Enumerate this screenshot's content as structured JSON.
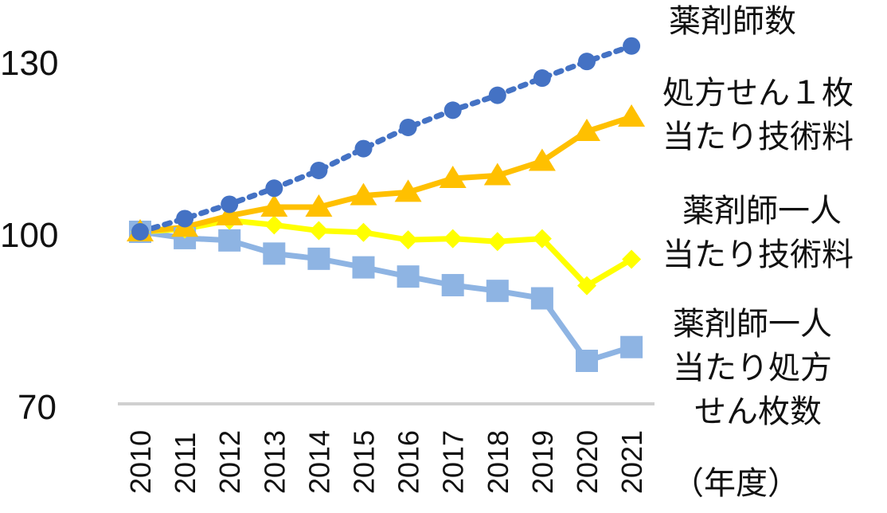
{
  "chart_data": {
    "type": "line",
    "x_unit_label": "（年度）",
    "categories": [
      "2010",
      "2011",
      "2012",
      "2013",
      "2014",
      "2015",
      "2016",
      "2017",
      "2018",
      "2019",
      "2020",
      "2021"
    ],
    "ylim": [
      70,
      130
    ],
    "yticks": [
      "130",
      "100",
      "70"
    ],
    "series": [
      {
        "name": "薬剤師数",
        "label_lines": [
          "薬剤師数"
        ],
        "marker": "circle",
        "line_style": "dotted",
        "color": "#4472C4",
        "values": [
          100,
          102.3,
          104.8,
          107.6,
          110.7,
          114.5,
          118.2,
          121.2,
          123.8,
          126.8,
          129.7,
          132.4
        ]
      },
      {
        "name": "処方せん１枚当たり技術料",
        "label_lines": [
          "処方せん１枚",
          "当たり技術料"
        ],
        "marker": "triangle",
        "line_style": "solid",
        "color": "#FFC000",
        "values": [
          100,
          100.8,
          102.8,
          104.3,
          104.3,
          106.3,
          106.9,
          109.3,
          109.8,
          112.3,
          117.5,
          120
        ]
      },
      {
        "name": "薬剤師一人当たり技術料",
        "label_lines": [
          "薬剤師一人",
          "当たり技術料"
        ],
        "marker": "diamond",
        "line_style": "solid",
        "color": "#FFFF00",
        "values": [
          100,
          100.5,
          102,
          101.2,
          100.2,
          99.9,
          98.6,
          98.8,
          98.3,
          98.8,
          90.6,
          95.2
        ]
      },
      {
        "name": "薬剤師一人当たり処方せん枚数",
        "label_lines": [
          "薬剤師一人",
          "当たり処方",
          "せん枚数"
        ],
        "marker": "square",
        "line_style": "solid",
        "color": "#8EB4E3",
        "values": [
          100,
          98.9,
          98.5,
          96.2,
          95.3,
          93.8,
          92.2,
          90.7,
          89.7,
          88.4,
          77.5,
          79.9
        ]
      }
    ]
  }
}
